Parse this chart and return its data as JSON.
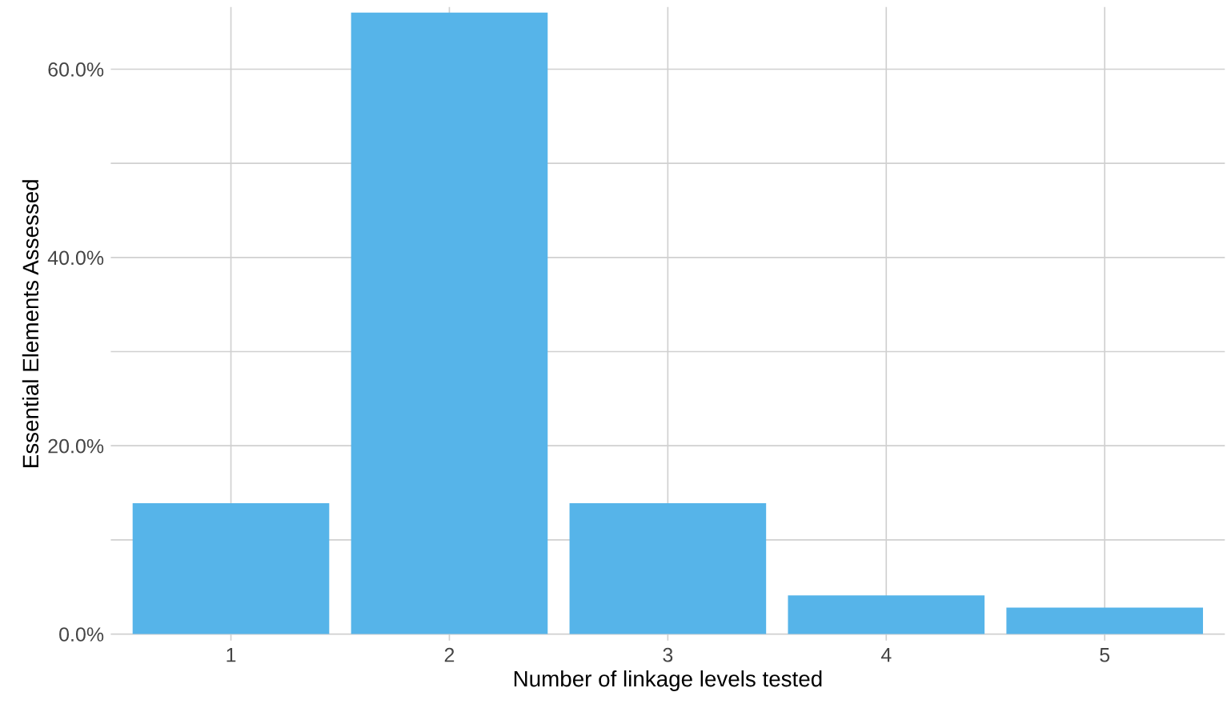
{
  "chart_data": {
    "type": "bar",
    "xlabel": "Number of linkage levels tested",
    "ylabel": "Essential Elements Assessed",
    "categories": [
      "1",
      "2",
      "3",
      "4",
      "5"
    ],
    "values": [
      13.9,
      66.0,
      13.9,
      4.1,
      2.8
    ],
    "color": "#56b4e9",
    "ylim": [
      -0.7,
      66.6
    ],
    "yticks": [
      {
        "value": 0,
        "label": "0.0%"
      },
      {
        "value": 10,
        "label": null
      },
      {
        "value": 20,
        "label": "20.0%"
      },
      {
        "value": 30,
        "label": null
      },
      {
        "value": 40,
        "label": "40.0%"
      },
      {
        "value": 50,
        "label": null
      },
      {
        "value": 60,
        "label": "60.0%"
      }
    ],
    "grid": true
  }
}
